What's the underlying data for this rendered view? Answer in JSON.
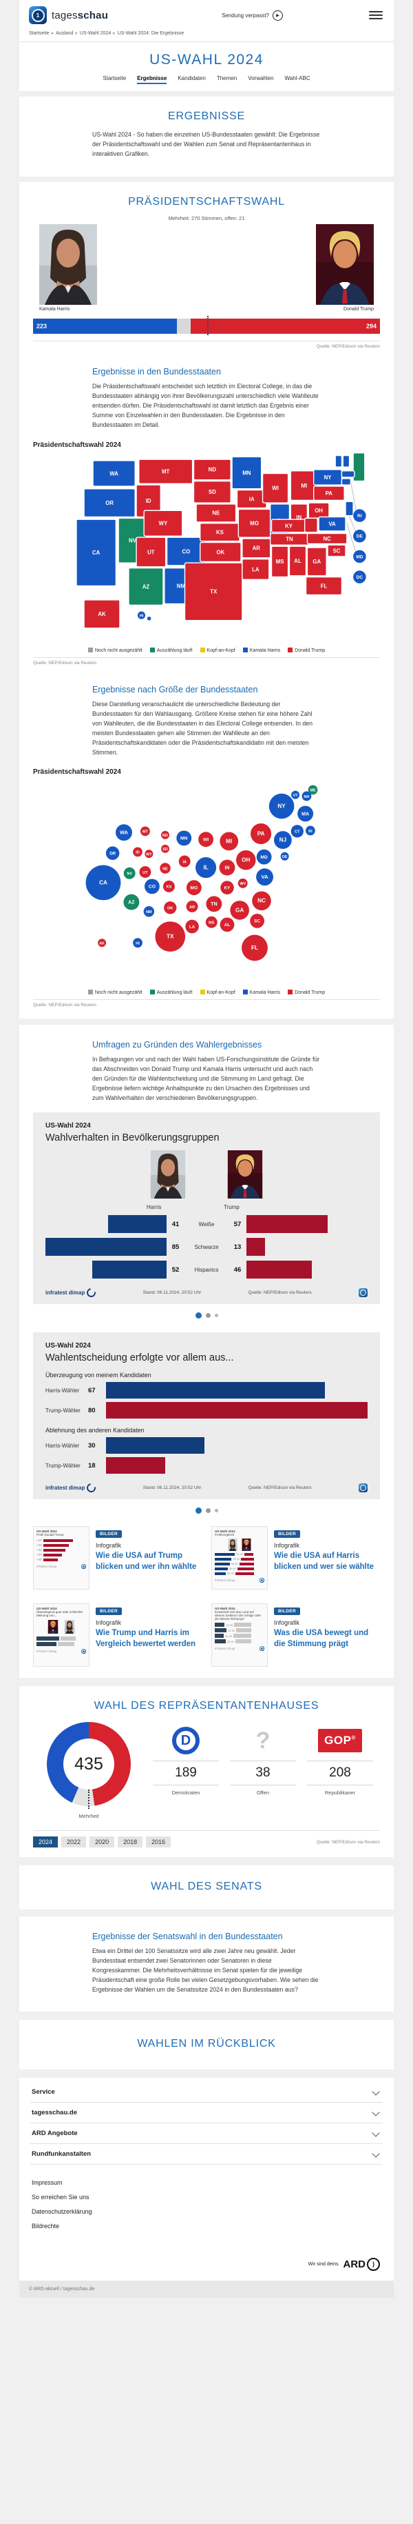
{
  "header": {
    "brand_light": "tages",
    "brand_bold": "schau",
    "sendung_verpasst": "Sendung verpasst?",
    "breadcrumb": [
      "Startseite",
      "Ausland",
      "US-Wahl 2024",
      "US-Wahl 2024: Die Ergebnisse"
    ],
    "page_title": "US-WAHL 2024",
    "tabs": [
      {
        "label": "Startseite",
        "active": false
      },
      {
        "label": "Ergebnisse",
        "active": true
      },
      {
        "label": "Kandidaten",
        "active": false
      },
      {
        "label": "Themen",
        "active": false
      },
      {
        "label": "Vorwahlen",
        "active": false
      },
      {
        "label": "Wahl-ABC",
        "active": false
      }
    ]
  },
  "colors": {
    "harris": "#1658c3",
    "trump": "#d6232e",
    "counting": "#158a63",
    "uncounted": "#9d9d9d",
    "tossup": "#f0c515",
    "open_gray": "#d8d8d8",
    "navy_bar": "#123d7d",
    "crimson_bar": "#a6112b",
    "donut_blue": "#1d55c4",
    "donut_gray": "#e3e3e3",
    "donut_red": "#d6232e"
  },
  "legend": [
    {
      "label": "Noch nicht ausgezählt",
      "color": "#9d9d9d"
    },
    {
      "label": "Auszählung läuft",
      "color": "#158a63"
    },
    {
      "label": "Kopf-an-Kopf",
      "color": "#f0c515"
    },
    {
      "label": "Kamala Harris",
      "color": "#1658c3"
    },
    {
      "label": "Donald Trump",
      "color": "#d6232e"
    }
  ],
  "sections": {
    "ergebnisse": {
      "title": "ERGEBNISSE",
      "text": "US-Wahl 2024 - So haben die einzelnen US-Bundesstaaten gewählt: Die Ergebnisse der Präsidentschaftswahl und der Wahlen zum Senat und Repräsentantenhaus in interaktiven Grafiken."
    },
    "praesidentschaft": {
      "title": "PRÄSIDENTSCHAFTSWAHL",
      "subtitle": "Mehrheit: 270 Stimmen, offen: 21",
      "left_name": "Kamala Harris",
      "right_name": "Donald Trump",
      "left_value": "223",
      "right_value": "294",
      "source": "Quelle: NEP/Edison via Reuters"
    },
    "bundesstaaten": {
      "heading": "Ergebnisse in den Bundesstaaten",
      "text": "Die Präsidentschaftswahl entscheidet sich letztlich im Electoral College, in das die Bundesstaaten abhängig von ihrer Bevölkerungszahl unterschiedlich viele Wahlleute entsenden dürfen. Die Präsidentschaftswahl ist damit letztlich das Ergebnis einer Summe von Einzelwahlen in den Bundesstaaten. Die Ergebnisse in den Bundesstaaten im Detail.",
      "chart_label": "Präsidentschaftswahl 2024",
      "source": "Quelle: NEP/Edison via Reuters"
    },
    "groesse": {
      "heading": "Ergebnisse nach Größe der Bundesstaaten",
      "text": "Diese Darstellung veranschaulicht die unterschiedliche Bedeutung der Bundesstaaten für den Wahlausgang. Größere Kreise stehen für eine höhere Zahl von Wahlleuten, die die Bundesstaaten in das Electoral College entsenden. In den meisten Bundesstaaten gehen alle Stimmen der Wahlleute an den Präsidentschaftskandidaten oder die Präsidentschaftskandidatin mit den meisten Stimmen.",
      "chart_label": "Präsidentschaftswahl 2024",
      "source": "Quelle: NEP/Edison via Reuters"
    },
    "umfragen": {
      "heading": "Umfragen zu Gründen des Wahlergebnisses",
      "text": "In Befragungen vor und nach der Wahl haben US-Forschungsinstitute die Gründe für das Abschneiden von Donald Trump und Kamala Harris untersucht und auch nach den Gründen für die Wahlentscheidung und die Stimmung im Land gefragt. Die Ergebnisse liefern wichtige Anhaltspunkte zu den Ursachen des Ergebnisses und zum Wahlverhalten der verschiedenen Bevölkerungsgruppen."
    },
    "haus": {
      "title": "WAHL DES REPRÄSENTANTENHAUSES",
      "donut_total": "435",
      "donut_label": "Mehrheit",
      "stats": [
        {
          "party": "dem",
          "value": "189",
          "label": "Demokraten"
        },
        {
          "party": "open",
          "value": "38",
          "label": "Offen"
        },
        {
          "party": "gop",
          "value": "208",
          "label": "Republikaner"
        }
      ],
      "years": [
        {
          "label": "2024",
          "active": true
        },
        {
          "label": "2022",
          "active": false
        },
        {
          "label": "2020",
          "active": false
        },
        {
          "label": "2018",
          "active": false
        },
        {
          "label": "2016",
          "active": false
        }
      ],
      "source": "Quelle: NEP/Edison via Reuters"
    },
    "senat": {
      "title": "WAHL DES SENATS"
    },
    "senatswahl": {
      "heading": "Ergebnisse der Senatswahl in den Bundesstaaten",
      "text": "Etwa ein Drittel der 100 Senatssitze wird alle zwei Jahre neu gewählt. Jeder Bundesstaat entsendet zwei Senatorinnen oder Senatoren in diese Kongresskammer. Die Mehrheitsverhältnisse im Senat spielen für die jeweilige Präsidentschaft eine große Rolle bei vielen Gesetzgebungsvorhaben. Wie sehen die Ergebnisse der Wahlen um die Senatssitze 2024 in den Bundesstaaten aus?"
    },
    "rueckblick": {
      "title": "WAHLEN IM RÜCKBLICK"
    }
  },
  "panels": [
    {
      "kicker": "US-Wahl 2024",
      "title": "Wahlverhalten in Bevölkerungsgruppen",
      "left_head": "Harris",
      "right_head": "Trump",
      "brand": "infratest dimap",
      "stand": "Stand:  06.11.2024, 20:52 Uhr",
      "source": "Quelle: NEP/Edison via Reuters"
    },
    {
      "kicker": "US-Wahl 2024",
      "title": "Wahlentscheidung erfolgte vor allem aus...",
      "brand": "infratest dimap",
      "stand": "Stand:  06.11.2024, 20:52 Uhr",
      "source": "Quelle: NEP/Edison via Reuters"
    }
  ],
  "teasers": [
    {
      "badge": "BILDER",
      "type": "Infografik",
      "title": "Wie die USA auf Trump blicken und wer ihn wählte",
      "thumb_kicker": "US-Wahl 2024",
      "thumb_caption": "Profil Donald Trump",
      "style": "red-bars"
    },
    {
      "badge": "BILDER",
      "type": "Infografik",
      "title": "Wie die USA auf Harris blicken und wer sie wählte",
      "thumb_kicker": "US-Wahl 2024",
      "thumb_caption": "Profilvergleich",
      "style": "pair-bars"
    },
    {
      "badge": "BILDER",
      "type": "Infografik",
      "title": "Wie Trump und Harris im Vergleich bewertet werden",
      "thumb_kicker": "US-Wahl 2024",
      "thumb_caption": "Überwiegend gute oder schlechte Meinung von...",
      "style": "compare"
    },
    {
      "badge": "BILDER",
      "type": "Infografik",
      "title": "Was die USA bewegt und die Stimmung prägt",
      "thumb_kicker": "US-Wahl 2024",
      "thumb_caption": "Entwickelt sich das Land auf diesem Gebiet in die richtige oder die falsche Richtung?",
      "style": "mood"
    }
  ],
  "chart_data": [
    {
      "id": "electoral-college-bar",
      "type": "bar",
      "title": "Präsidentschaftswahl Electoral College",
      "series": [
        {
          "name": "Kamala Harris",
          "value": 223,
          "color": "#1658c3"
        },
        {
          "name": "offen",
          "value": 21,
          "color": "#d8d8d8"
        },
        {
          "name": "Donald Trump",
          "value": 294,
          "color": "#d6232e"
        }
      ],
      "majority": 270,
      "total": 538
    },
    {
      "id": "state-map",
      "type": "map",
      "title": "Präsidentschaftswahl 2024",
      "results": {
        "WA": "harris",
        "OR": "harris",
        "CA": "harris",
        "NM": "harris",
        "CO": "harris",
        "MN": "harris",
        "IL": "harris",
        "VA": "harris",
        "NY": "harris",
        "VT": "harris",
        "NH": "harris",
        "MA": "harris",
        "CT": "harris",
        "RI": "harris",
        "NJ": "harris",
        "DE": "harris",
        "MD": "harris",
        "DC": "harris",
        "HI": "harris",
        "NV": "counting",
        "AZ": "counting",
        "ME": "counting",
        "ID": "trump",
        "MT": "trump",
        "WY": "trump",
        "UT": "trump",
        "ND": "trump",
        "SD": "trump",
        "NE": "trump",
        "KS": "trump",
        "OK": "trump",
        "TX": "trump",
        "IA": "trump",
        "MO": "trump",
        "AR": "trump",
        "LA": "trump",
        "WI": "trump",
        "MI": "trump",
        "IN": "trump",
        "OH": "trump",
        "KY": "trump",
        "TN": "trump",
        "MS": "trump",
        "AL": "trump",
        "GA": "trump",
        "FL": "trump",
        "SC": "trump",
        "NC": "trump",
        "WV": "trump",
        "PA": "trump",
        "AK": "trump"
      }
    },
    {
      "id": "state-bubbles",
      "type": "bubble",
      "title": "Präsidentschaftswahl 2024",
      "note": "Kreisgröße = Zahl der Wahlleute im Electoral College",
      "electoral_votes": {
        "CA": 54,
        "TX": 40,
        "FL": 30,
        "NY": 28,
        "PA": 19,
        "IL": 19,
        "OH": 17,
        "GA": 16,
        "NC": 16,
        "MI": 15,
        "NJ": 14,
        "VA": 13,
        "WA": 12,
        "AZ": 11,
        "MA": 11,
        "TN": 11,
        "IN": 11,
        "MD": 10,
        "MN": 10,
        "MO": 10,
        "WI": 10,
        "CO": 10,
        "AL": 9,
        "SC": 9,
        "KY": 8,
        "LA": 8,
        "OR": 8,
        "OK": 7,
        "CT": 7,
        "UT": 6,
        "IA": 6,
        "NV": 6,
        "AR": 6,
        "MS": 6,
        "KS": 6,
        "NM": 5,
        "NE": 5,
        "WV": 4,
        "ID": 4,
        "HI": 4,
        "NH": 4,
        "ME": 4,
        "RI": 4,
        "MT": 4,
        "DE": 3,
        "SD": 3,
        "ND": 3,
        "AK": 3,
        "VT": 3,
        "WY": 3
      }
    },
    {
      "id": "demografie",
      "type": "bar",
      "title": "Wahlverhalten in Bevölkerungsgruppen",
      "categories": [
        "Weiße",
        "Schwarze",
        "Hispanics"
      ],
      "series": [
        {
          "name": "Harris",
          "values": [
            41,
            85,
            52
          ],
          "color": "#123d7d"
        },
        {
          "name": "Trump",
          "values": [
            57,
            13,
            46
          ],
          "color": "#a6112b"
        }
      ],
      "max": 85
    },
    {
      "id": "wahlmotiv",
      "type": "bar",
      "title": "Wahlentscheidung erfolgte vor allem aus...",
      "groups": [
        {
          "label": "Überzeugung von meinem Kandidaten",
          "rows": [
            {
              "name": "Harris-Wähler",
              "value": 67,
              "color": "#123d7d"
            },
            {
              "name": "Trump-Wähler",
              "value": 80,
              "color": "#a6112b"
            }
          ]
        },
        {
          "label": "Ablehnung des anderen Kandidaten",
          "rows": [
            {
              "name": "Harris-Wähler",
              "value": 30,
              "color": "#123d7d"
            },
            {
              "name": "Trump-Wähler",
              "value": 18,
              "color": "#a6112b"
            }
          ]
        }
      ],
      "max": 80
    },
    {
      "id": "haus-donut",
      "type": "donut",
      "total": 435,
      "slices": [
        {
          "label": "Demokraten",
          "value": 189,
          "color": "#1d55c4"
        },
        {
          "label": "Offen",
          "value": 38,
          "color": "#e3e3e3"
        },
        {
          "label": "Republikaner",
          "value": 208,
          "color": "#d6232e"
        }
      ],
      "center_label": "Mehrheit"
    }
  ],
  "footer": {
    "accordions": [
      "Service",
      "tagesschau.de",
      "ARD Angebote",
      "Rundfunkanstalten"
    ],
    "links": [
      "Impressum",
      "So erreichen Sie uns",
      "Datenschutzerklärung",
      "Bildrechte"
    ],
    "tagline": "Wir sind deins.",
    "brand": "ARD",
    "copyright": "© ARD-aktuell / tagesschau.de"
  }
}
